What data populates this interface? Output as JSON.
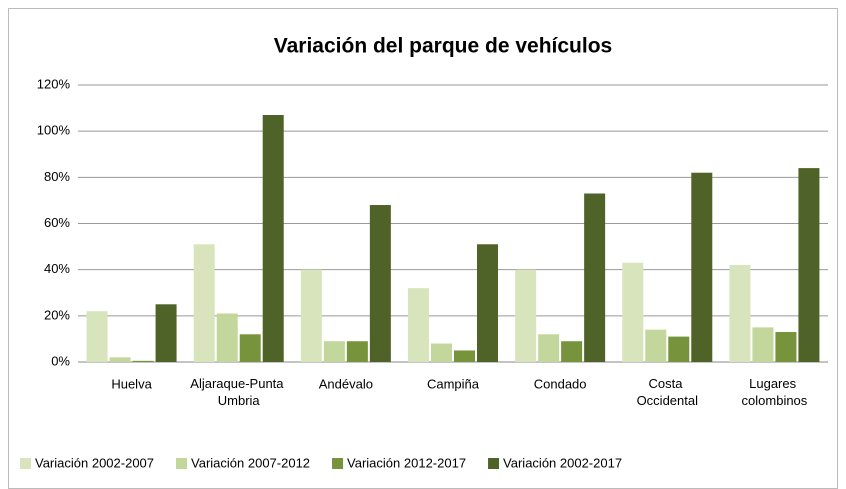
{
  "chart_data": {
    "type": "bar",
    "title": "Variación del parque de vehículos",
    "categories": [
      "Huelva",
      "Aljaraque-Punta Umbria",
      "Andévalo",
      "Campiña",
      "Condado",
      "Costa Occidental",
      "Lugares colombinos"
    ],
    "series": [
      {
        "name": "Variación 2002-2007",
        "color": "#d8e4bc",
        "values": [
          22,
          51,
          40,
          32,
          40,
          43,
          42
        ]
      },
      {
        "name": "Variación 2007-2012",
        "color": "#c3d69b",
        "values": [
          2,
          21,
          9,
          8,
          12,
          14,
          15
        ]
      },
      {
        "name": "Variación 2012-2017",
        "color": "#77933c",
        "values": [
          0.5,
          12,
          9,
          5,
          9,
          11,
          13
        ]
      },
      {
        "name": "Variación 2002-2017",
        "color": "#4f6228",
        "values": [
          25,
          107,
          68,
          51,
          73,
          82,
          84
        ]
      }
    ],
    "ylim": [
      0,
      120
    ],
    "yticks": [
      {
        "value": 0,
        "label": "0%"
      },
      {
        "value": 20,
        "label": "20%"
      },
      {
        "value": 40,
        "label": "40%"
      },
      {
        "value": 60,
        "label": "60%"
      },
      {
        "value": 80,
        "label": "80%"
      },
      {
        "value": 100,
        "label": "100%"
      },
      {
        "value": 120,
        "label": "120%"
      }
    ],
    "grid": true,
    "legend": "bottom"
  }
}
